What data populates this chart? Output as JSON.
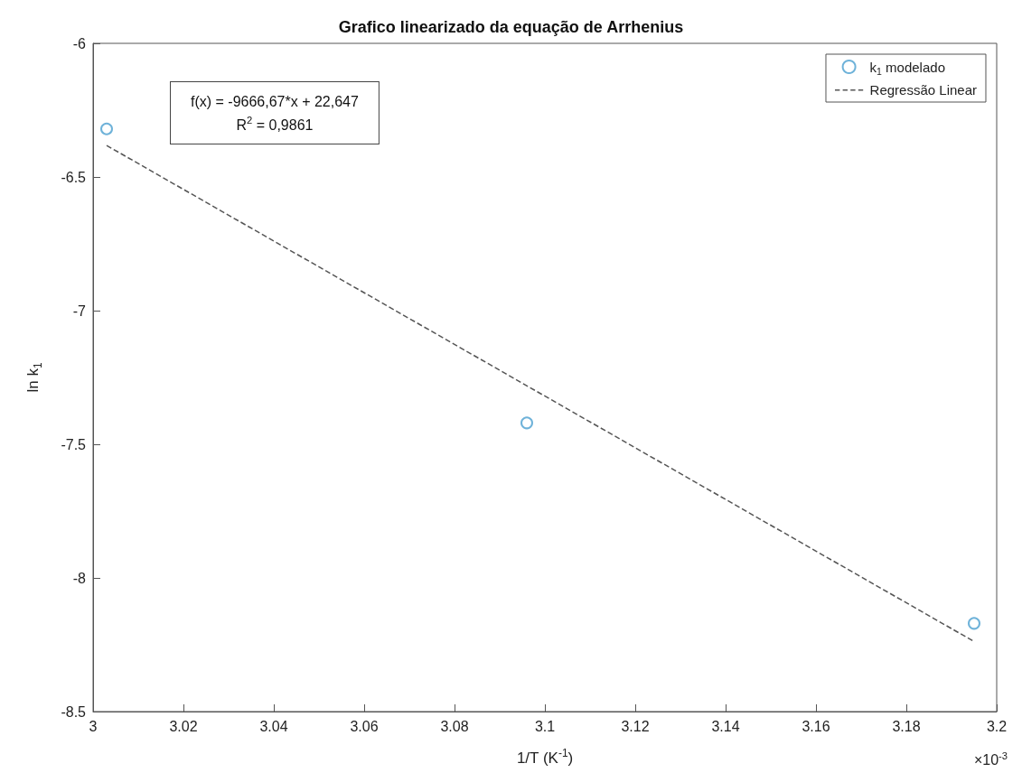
{
  "chart_data": {
    "type": "scatter",
    "title": "Grafico linearizado da equação de Arrhenius",
    "xlabel": "1/T (K$^{-1}$)",
    "ylabel": "ln k$_{1}$",
    "xlim": [
      3,
      3.2
    ],
    "xticks": [
      3,
      3.02,
      3.04,
      3.06,
      3.08,
      3.1,
      3.12,
      3.14,
      3.16,
      3.18,
      3.2
    ],
    "ylim": [
      -8.5,
      -6
    ],
    "yticks": [
      -8.5,
      -8,
      -7.5,
      -7,
      -6.5,
      -6
    ],
    "grid": false,
    "legend": "top right",
    "annotations": [
      "f(x) = -9666,67*x + 22,647",
      "R$^{2}$ = 0,9861",
      "×10$^{-3}$"
    ],
    "series": [
      {
        "name": "k$_{1}$ modelado",
        "color": "#4a9fd0",
        "marker": "circle",
        "x": [
          3.003,
          3.096,
          3.195
        ],
        "values": [
          -6.32,
          -7.42,
          -8.17
        ]
      },
      {
        "name": "Regressão Linear",
        "type": "line",
        "color": "#555555",
        "marker": "none",
        "line_style": "dashed",
        "x": [
          3.003,
          3.195
        ],
        "values": [
          -6.382,
          -8.238
        ]
      }
    ]
  }
}
